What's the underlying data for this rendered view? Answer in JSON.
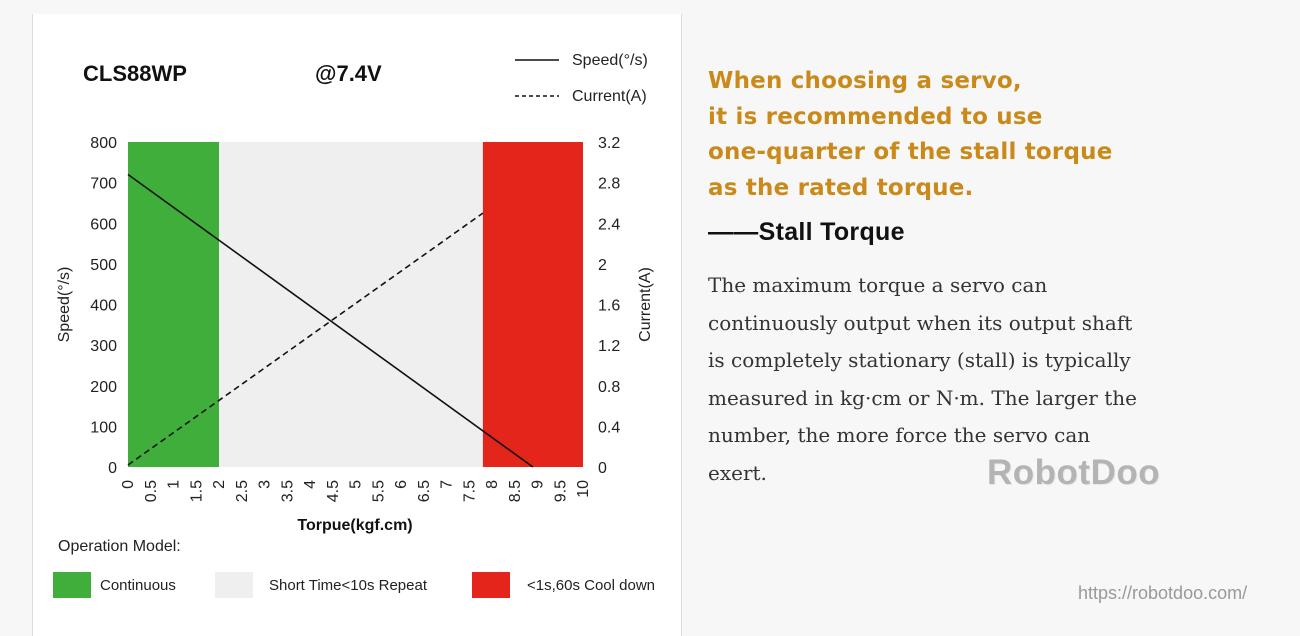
{
  "colors": {
    "continuous": "#3fae3a",
    "short_time": "#efefef",
    "cool_down": "#e3251b",
    "accent": "#c98a1a",
    "line": "#111111"
  },
  "chart_data": {
    "type": "line",
    "title": "CLS88WP",
    "subtitle": "@7.4V",
    "xlabel": "Torpue(kgf.cm)",
    "ylabel": "Speed(°/s)",
    "y2label": "Current(A)",
    "xlim": [
      0,
      10
    ],
    "ylim": [
      0,
      800
    ],
    "y2lim": [
      0,
      3.2
    ],
    "x_ticks": [
      "0",
      "0.5",
      "1",
      "1.5",
      "2",
      "2.5",
      "3",
      "3.5",
      "4",
      "4.5",
      "5",
      "5.5",
      "6",
      "6.5",
      "7",
      "7.5",
      "8",
      "8.5",
      "9",
      "9.5",
      "10"
    ],
    "y_ticks": [
      "0",
      "100",
      "200",
      "300",
      "400",
      "500",
      "600",
      "700",
      "800"
    ],
    "y2_ticks": [
      "0",
      "0.4",
      "0.8",
      "1.2",
      "1.6",
      "2",
      "2.4",
      "2.8",
      "3.2"
    ],
    "grid": false,
    "legend_position": "top-right",
    "series": [
      {
        "name": "Speed(°/s)",
        "axis": "left",
        "style": "solid",
        "x": [
          0,
          8.9
        ],
        "y": [
          720,
          0
        ]
      },
      {
        "name": "Current(A)",
        "axis": "right",
        "style": "dashed",
        "x": [
          0,
          7.8
        ],
        "y": [
          0.02,
          2.5
        ]
      }
    ],
    "zones": [
      {
        "label": "Continuous",
        "from": 0,
        "to": 2,
        "color": "#3fae3a"
      },
      {
        "label": "Short Time<10s Repeat",
        "from": 2,
        "to": 7.8,
        "color": "#efefef"
      },
      {
        "label": "<1s,60s Cool down",
        "from": 7.8,
        "to": 10,
        "color": "#e3251b"
      }
    ]
  },
  "operation_model": {
    "title": "Operation Model:",
    "items": [
      {
        "label": "Continuous",
        "color": "#3fae3a"
      },
      {
        "label": "Short Time<10s Repeat",
        "color": "#efefef"
      },
      {
        "label": "<1s,60s Cool down",
        "color": "#e3251b"
      }
    ]
  },
  "panel": {
    "quote_lines": [
      "When choosing a servo,",
      "it is recommended to use",
      "one-quarter of the stall torque",
      "as the rated torque."
    ],
    "term": "——Stall Torque",
    "description": "The maximum torque a servo can continuously output when its output shaft is completely stationary (stall) is typically measured in kg·cm or N·m. The larger the number, the more force the servo can exert."
  },
  "brand": "RobotDoo",
  "website": "https://robotdoo.com/"
}
